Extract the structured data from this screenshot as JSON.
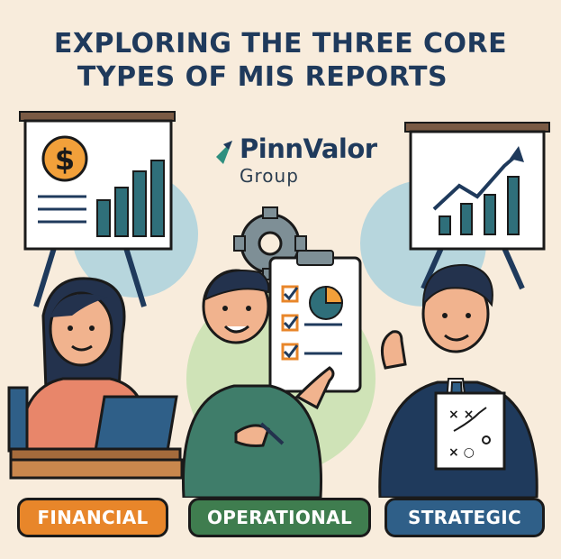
{
  "title": {
    "line1": "EXPLORING THE THREE CORE",
    "line2": "TYPES OF MIS REPORTS"
  },
  "logo": {
    "name": "PinnValor",
    "sub": "Group"
  },
  "categories": [
    {
      "label": "FINANCIAL",
      "color": "#e8862a"
    },
    {
      "label": "OPERATIONAL",
      "color": "#3f7d4f"
    },
    {
      "label": "STRATEGIC",
      "color": "#2f5f88"
    }
  ],
  "icons": {
    "dollar": "dollar-icon",
    "gear": "gear-icon",
    "chart": "bar-chart-icon",
    "trend": "trend-up-icon",
    "checklist": "checklist-icon",
    "pie": "pie-chart-icon",
    "strategy": "strategy-board-icon"
  },
  "colors": {
    "background": "#f8ecdc",
    "navy": "#1f3a5c",
    "light_blue_circle": "#b7d6dd",
    "light_green_circle": "#cfe3b7"
  }
}
